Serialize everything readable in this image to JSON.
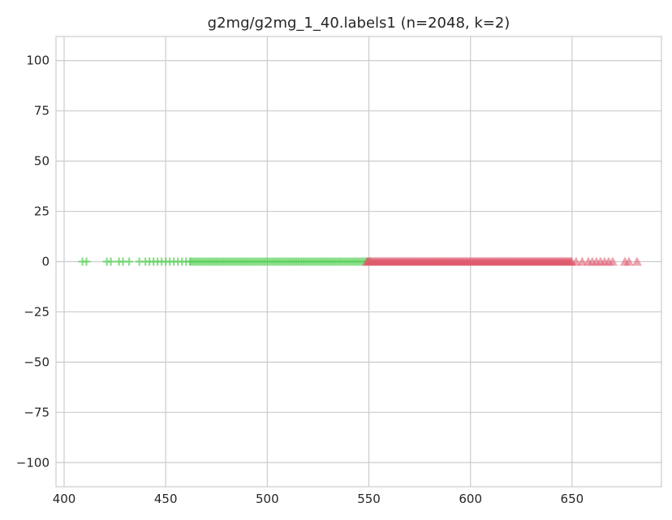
{
  "chart_data": {
    "type": "scatter",
    "title": "g2mg/g2mg_1_40.labels1 (n=2048, k=2)",
    "xlabel": "",
    "ylabel": "",
    "xlim": [
      396,
      694
    ],
    "ylim": [
      -112,
      112
    ],
    "x_ticks": [
      400,
      450,
      500,
      550,
      600,
      650
    ],
    "y_ticks": [
      100,
      75,
      50,
      25,
      0,
      -25,
      -50,
      -75,
      -100
    ],
    "x_tick_labels": [
      "400",
      "450",
      "500",
      "550",
      "600",
      "650"
    ],
    "y_tick_labels": [
      "100",
      "75",
      "50",
      "25",
      "0",
      "−25",
      "−50",
      "−75",
      "−100"
    ],
    "grid": true,
    "legend": "none",
    "series": [
      {
        "marker": "plus",
        "color": "#5fd35f",
        "cluster": 1,
        "x_range": [
          409,
          551
        ],
        "y": 0,
        "outliers": [
          409,
          411,
          421,
          423,
          427,
          429,
          432,
          437,
          440,
          442,
          444,
          446,
          448,
          450,
          452,
          454,
          456,
          458,
          460,
          462
        ]
      },
      {
        "marker": "triangle",
        "color": "#e05a6e",
        "cluster": 2,
        "x_range": [
          549,
          683
        ],
        "y": 0,
        "outliers": [
          652,
          655,
          658,
          660,
          662,
          664,
          666,
          668,
          670,
          676,
          678,
          682
        ]
      }
    ]
  }
}
